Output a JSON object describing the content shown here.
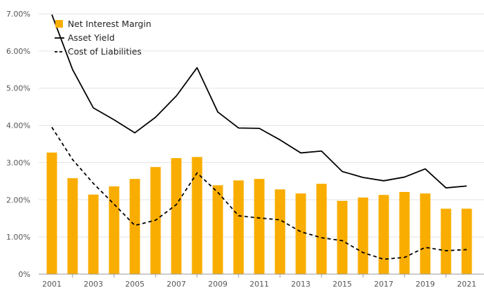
{
  "chart_data": {
    "type": "bar",
    "title": "",
    "xlabel": "",
    "ylabel": "",
    "ylim": [
      0,
      7
    ],
    "grid": true,
    "legend_position": "top-left",
    "years": [
      2001,
      2002,
      2003,
      2004,
      2005,
      2006,
      2007,
      2008,
      2009,
      2010,
      2011,
      2012,
      2013,
      2014,
      2015,
      2016,
      2017,
      2018,
      2019,
      2020,
      2021
    ],
    "x_tick_labels": [
      "2001",
      "2003",
      "2005",
      "2007",
      "2009",
      "2011",
      "2013",
      "2015",
      "2017",
      "2019",
      "2021"
    ],
    "y_tick_labels": [
      "0%",
      "1.00%",
      "2.00%",
      "3.00%",
      "4.00%",
      "5.00%",
      "6.00%",
      "7.00%"
    ],
    "y_tick_values": [
      0,
      1,
      2,
      3,
      4,
      5,
      6,
      7
    ],
    "series": [
      {
        "name": "Net Interest Margin",
        "kind": "bar",
        "color": "#f9ad00",
        "values": [
          3.27,
          2.58,
          2.14,
          2.36,
          2.56,
          2.88,
          3.12,
          3.15,
          2.39,
          2.52,
          2.56,
          2.28,
          2.17,
          2.43,
          1.97,
          2.06,
          2.13,
          2.21,
          2.17,
          1.76,
          1.76
        ]
      },
      {
        "name": "Asset Yield",
        "kind": "line",
        "color": "#000000",
        "dash": "solid",
        "values": [
          6.98,
          5.5,
          4.47,
          4.15,
          3.8,
          4.22,
          4.79,
          5.55,
          4.36,
          3.93,
          3.92,
          3.61,
          3.26,
          3.31,
          2.76,
          2.6,
          2.51,
          2.61,
          2.83,
          2.32,
          2.37
        ]
      },
      {
        "name": "Cost of Liabilities",
        "kind": "line",
        "color": "#000000",
        "dash": "dashed",
        "values": [
          3.95,
          3.08,
          2.44,
          1.88,
          1.31,
          1.45,
          1.87,
          2.72,
          2.2,
          1.57,
          1.51,
          1.46,
          1.14,
          0.98,
          0.9,
          0.58,
          0.4,
          0.45,
          0.72,
          0.63,
          0.66
        ]
      }
    ]
  }
}
